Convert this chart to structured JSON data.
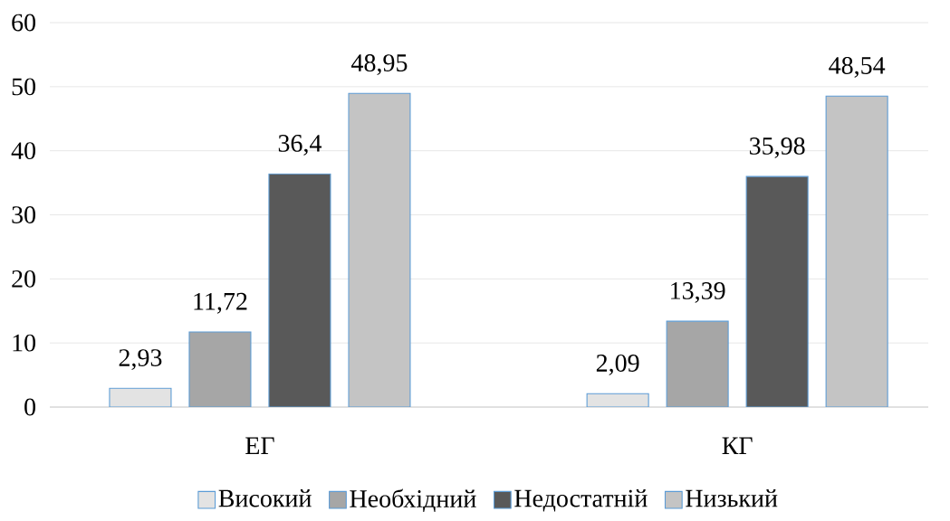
{
  "chart_data": {
    "type": "bar",
    "categories": [
      "ЕГ",
      "КГ"
    ],
    "series": [
      {
        "name": "Високий",
        "color": "#e3e3e3",
        "values": [
          2.93,
          2.09
        ],
        "value_labels": [
          "2,93",
          "2,09"
        ]
      },
      {
        "name": "Необхідний",
        "color": "#a6a6a6",
        "values": [
          11.72,
          13.39
        ],
        "value_labels": [
          "11,72",
          "13,39"
        ]
      },
      {
        "name": "Недостатній",
        "color": "#595959",
        "values": [
          36.4,
          35.98
        ],
        "value_labels": [
          "36,4",
          "35,98"
        ]
      },
      {
        "name": "Низький",
        "color": "#c4c4c4",
        "values": [
          48.95,
          48.54
        ],
        "value_labels": [
          "48,95",
          "48,54"
        ]
      }
    ],
    "ylim": [
      0,
      60
    ],
    "yticks": [
      0,
      10,
      20,
      30,
      40,
      50,
      60
    ],
    "grid": "y",
    "legend": "bottom"
  }
}
